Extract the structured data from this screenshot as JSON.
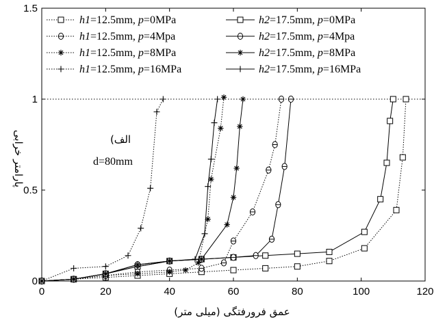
{
  "chart_data": {
    "type": "line",
    "title": "",
    "xlabel": "عمق فرورفتگی (میلی متر)",
    "ylabel": "پارامتر خرابی",
    "xlim": [
      0,
      120
    ],
    "ylim": [
      0,
      1.5
    ],
    "xticks": [
      "0",
      "20",
      "40",
      "60",
      "80",
      "100",
      "120"
    ],
    "yticks": [
      "0",
      "0.5",
      "1",
      "1.5"
    ],
    "grid": false,
    "legend_position": "top-left",
    "reference_line": {
      "y": 1,
      "style": "dotted"
    },
    "annotations": {
      "label": "الف)",
      "condition": "d=80mm"
    },
    "series": [
      {
        "name": "h1=12.5mm, p=0MPa",
        "style": "dotted",
        "marker": "square",
        "x": [
          0,
          10,
          20,
          30,
          40,
          50,
          60,
          70,
          80,
          90,
          101,
          111,
          113,
          114
        ],
        "y": [
          0,
          0.01,
          0.02,
          0.03,
          0.04,
          0.05,
          0.06,
          0.07,
          0.08,
          0.11,
          0.18,
          0.39,
          0.68,
          1.0
        ]
      },
      {
        "name": "h1=12.5mm, p=4Mpa",
        "style": "dotted",
        "marker": "circle",
        "x": [
          0,
          10,
          20,
          30,
          40,
          50,
          57,
          60,
          66,
          71,
          73,
          75
        ],
        "y": [
          0,
          0.01,
          0.03,
          0.05,
          0.06,
          0.07,
          0.1,
          0.22,
          0.38,
          0.61,
          0.75,
          1.0
        ]
      },
      {
        "name": "h1=12.5mm, p=8MPa",
        "style": "dotted",
        "marker": "asterisk",
        "x": [
          0,
          10,
          20,
          30,
          40,
          45,
          49,
          52,
          53,
          56,
          57
        ],
        "y": [
          0,
          0.01,
          0.03,
          0.04,
          0.05,
          0.06,
          0.1,
          0.34,
          0.56,
          0.84,
          1.01
        ]
      },
      {
        "name": "h1=12.5mm, p=16MPa",
        "style": "dotted",
        "marker": "plus",
        "x": [
          0,
          10,
          20,
          27,
          31,
          34,
          36,
          38
        ],
        "y": [
          0,
          0.07,
          0.08,
          0.14,
          0.29,
          0.51,
          0.93,
          1.0
        ]
      },
      {
        "name": "h2=17.5mm, p=0MPa",
        "style": "solid",
        "marker": "square",
        "x": [
          0,
          10,
          20,
          30,
          40,
          50,
          60,
          70,
          80,
          90,
          101,
          106,
          108,
          109,
          110
        ],
        "y": [
          0,
          0.01,
          0.04,
          0.08,
          0.11,
          0.12,
          0.13,
          0.14,
          0.15,
          0.16,
          0.27,
          0.45,
          0.65,
          0.88,
          1.0
        ]
      },
      {
        "name": "h2=17.5mm, p=4Mpa",
        "style": "solid",
        "marker": "circle",
        "x": [
          0,
          10,
          20,
          30,
          40,
          50,
          60,
          67,
          72,
          74,
          76,
          78
        ],
        "y": [
          0,
          0.01,
          0.04,
          0.09,
          0.11,
          0.12,
          0.13,
          0.14,
          0.23,
          0.42,
          0.63,
          1.0
        ]
      },
      {
        "name": "h2=17.5mm, p=8MPa",
        "style": "solid",
        "marker": "asterisk",
        "x": [
          0,
          10,
          20,
          30,
          40,
          50,
          58,
          60,
          61,
          62,
          63
        ],
        "y": [
          0,
          0.01,
          0.04,
          0.09,
          0.11,
          0.12,
          0.31,
          0.46,
          0.62,
          0.85,
          1.0
        ]
      },
      {
        "name": "h2=17.5mm, p=16MPa",
        "style": "solid",
        "marker": "plus",
        "x": [
          0,
          10,
          20,
          30,
          40,
          48,
          51,
          52,
          53,
          54,
          55
        ],
        "y": [
          0,
          0.01,
          0.04,
          0.08,
          0.11,
          0.12,
          0.26,
          0.52,
          0.67,
          0.87,
          1.0
        ]
      }
    ]
  }
}
